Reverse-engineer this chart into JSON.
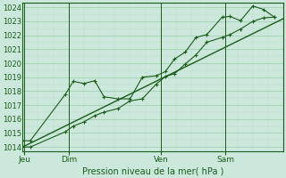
{
  "bg_color": "#cce8dc",
  "grid_major_color": "#99ccaa",
  "grid_minor_color": "#bbddcc",
  "line_color": "#1a5c1a",
  "tick_color": "#1a5c1a",
  "label_color": "#1a5c1a",
  "ylabel_min": 1014,
  "ylabel_max": 1024,
  "ytick_step": 1,
  "xlabel": "Pression niveau de la mer( hPa )",
  "xtick_labels": [
    "Jeu",
    "Dim",
    "Ven",
    "Sam"
  ],
  "xtick_positions": [
    0.05,
    1.5,
    4.5,
    6.6
  ],
  "vline_positions": [
    0.05,
    1.5,
    4.5,
    6.6
  ],
  "trend_x": [
    0.0,
    8.5
  ],
  "trend_y": [
    1014.0,
    1023.2
  ],
  "line1_x": [
    0.0,
    0.25,
    1.4,
    1.65,
    2.0,
    2.35,
    2.65,
    3.1,
    3.5,
    3.9,
    4.35,
    4.65,
    4.95,
    5.3,
    5.65,
    6.0,
    6.5,
    6.75,
    7.1,
    7.5,
    7.85,
    8.2
  ],
  "line1_y": [
    1014.45,
    1014.45,
    1017.8,
    1018.7,
    1018.55,
    1018.75,
    1017.6,
    1017.45,
    1017.45,
    1019.0,
    1019.1,
    1019.4,
    1020.3,
    1020.8,
    1021.85,
    1022.05,
    1023.3,
    1023.35,
    1023.05,
    1024.1,
    1023.85,
    1023.3
  ],
  "line2_x": [
    0.0,
    0.25,
    1.4,
    1.65,
    2.0,
    2.35,
    2.65,
    3.1,
    3.5,
    3.9,
    4.35,
    4.65,
    4.95,
    5.3,
    5.65,
    6.0,
    6.5,
    6.75,
    7.1,
    7.5,
    7.85,
    8.2
  ],
  "line2_y": [
    1014.0,
    1014.0,
    1015.1,
    1015.5,
    1015.8,
    1016.25,
    1016.5,
    1016.75,
    1017.3,
    1017.45,
    1018.5,
    1019.05,
    1019.25,
    1019.95,
    1020.6,
    1021.5,
    1021.85,
    1022.05,
    1022.45,
    1023.0,
    1023.25,
    1023.3
  ],
  "xmin": 0.0,
  "xmax": 8.5
}
